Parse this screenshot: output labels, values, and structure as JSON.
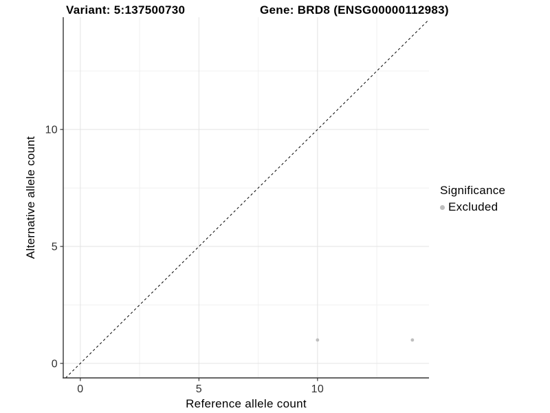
{
  "chart_data": {
    "type": "scatter",
    "title_left": "Variant: 5:137500730",
    "title_right": "Gene: BRD8 (ENSG00000112983)",
    "xlabel": "Reference allele count",
    "ylabel": "Alternative allele count",
    "xlim": [
      -0.72,
      14.7
    ],
    "ylim": [
      -0.62,
      14.8
    ],
    "x_ticks": [
      0,
      5,
      10
    ],
    "y_ticks": [
      0,
      5,
      10
    ],
    "x_minor_gridlines": [
      2.5,
      7.5,
      12.5
    ],
    "y_minor_gridlines": [
      2.5,
      7.5,
      12.5
    ],
    "grid": "major+minor, light gray, on white background",
    "legend_position": "right",
    "legend_title": "Significance",
    "series": [
      {
        "name": "Excluded",
        "color": "#bebebe",
        "points": [
          {
            "x": 10,
            "y": 1
          },
          {
            "x": 14,
            "y": 1
          }
        ]
      }
    ],
    "reference_line": {
      "type": "identity y=x",
      "style": "dashed",
      "color": "#000000"
    }
  },
  "colors": {
    "background": "#ffffff",
    "grid_major": "#e3e3e3",
    "grid_minor": "#f0f0f0",
    "axis_line": "#333333",
    "tick_text": "#303030",
    "point": "#bebebe"
  }
}
